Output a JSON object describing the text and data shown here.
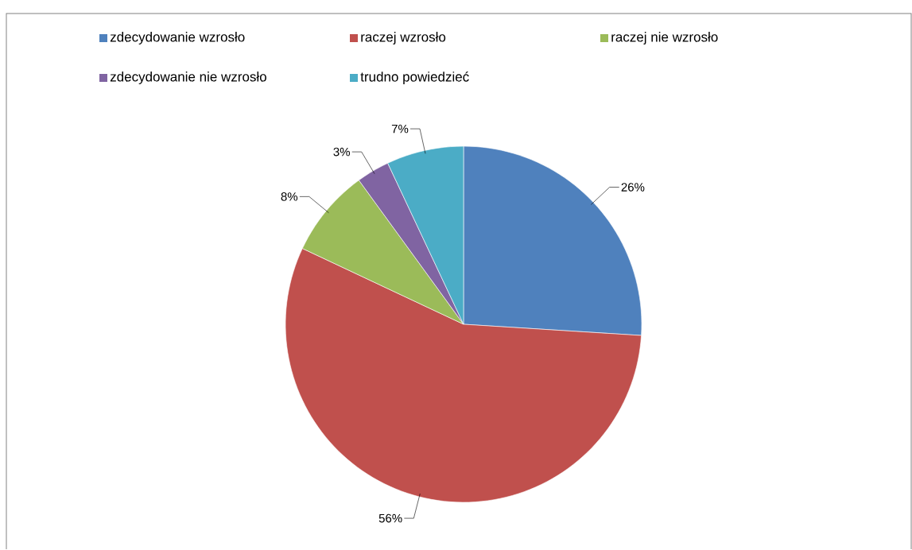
{
  "chart_data": {
    "type": "pie",
    "categories": [
      "zdecydowanie wzrosło",
      "raczej wzrosło",
      "raczej nie wzrosło",
      "zdecydowanie nie wzrosło",
      "trudno powiedzieć"
    ],
    "values": [
      26,
      56,
      8,
      3,
      7
    ],
    "value_labels": [
      "26%",
      "56%",
      "8%",
      "3%",
      "7%"
    ],
    "colors": [
      "#4f81bd",
      "#c0504d",
      "#9bbb59",
      "#8064a2",
      "#4bacc6"
    ],
    "legend": "top"
  }
}
